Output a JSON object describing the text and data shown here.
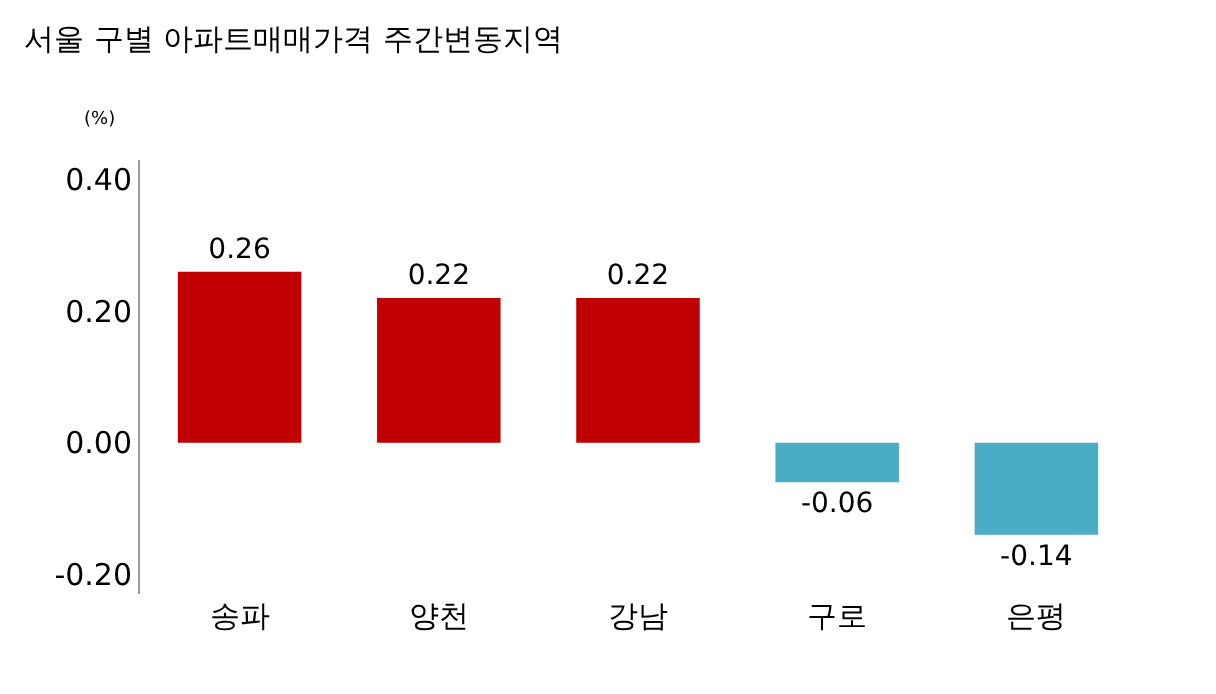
{
  "chart_data": {
    "type": "bar",
    "title": "서울 구별 아파트매매가격 주간변동지역",
    "ylabel": "(%)",
    "categories": [
      "송파",
      "양천",
      "강남",
      "구로",
      "은평"
    ],
    "values": [
      0.26,
      0.22,
      0.22,
      -0.06,
      -0.14
    ],
    "colors": [
      "#c00000",
      "#c00000",
      "#c00000",
      "#4bacc6",
      "#4bacc6"
    ],
    "ylim": [
      -0.23,
      0.43
    ],
    "yticks": [
      {
        "value": 0.4,
        "label": "0.40"
      },
      {
        "value": 0.2,
        "label": "0.20"
      },
      {
        "value": 0,
        "label": "0.00"
      },
      {
        "value": -0.2,
        "label": "-0.20"
      }
    ],
    "data_labels": true,
    "grid": false,
    "legend": false
  }
}
